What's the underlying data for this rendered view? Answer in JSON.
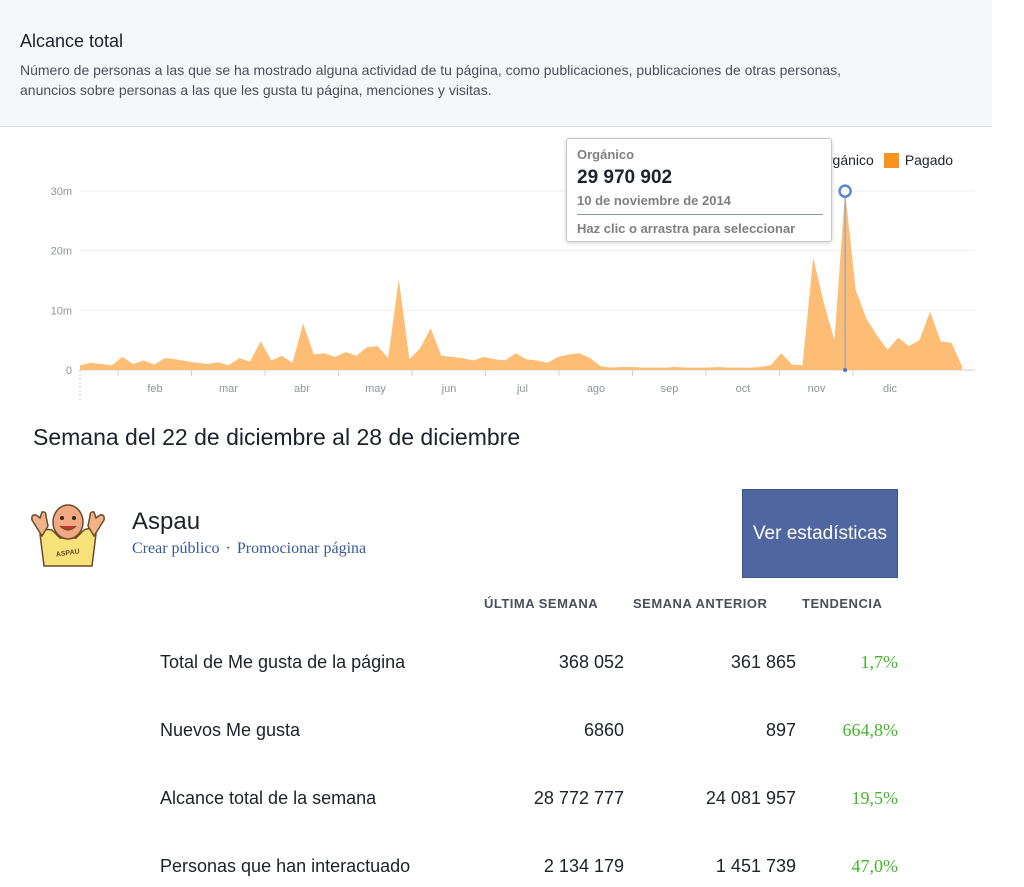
{
  "header": {
    "title": "Alcance total",
    "description": "Número de personas a las que se ha mostrado alguna actividad de tu página, como publicaciones, publicaciones de otras personas, anuncios sobre personas a las que les gusta tu página, menciones y visitas."
  },
  "legend": {
    "organic_label": "Orgánico",
    "paid_label": "Pagado",
    "organic_color": "#fdf3e6",
    "paid_color": "#f7941d"
  },
  "tooltip": {
    "series": "Orgánico",
    "value": "29 970 902",
    "date": "10 de noviembre de 2014",
    "hint": "Haz clic o arrastra para seleccionar"
  },
  "chart_data": {
    "type": "area",
    "y_ticks": [
      "30m",
      "20m",
      "10m",
      "0"
    ],
    "ylim": [
      0,
      30
    ],
    "x_ticks": [
      "feb",
      "mar",
      "abr",
      "may",
      "jun",
      "jul",
      "ago",
      "sep",
      "oct",
      "nov",
      "dic"
    ],
    "series": [
      {
        "name": "Orgánico",
        "color": "#fdbd74",
        "values": [
          0.8,
          1.2,
          1.0,
          0.8,
          2.2,
          1.0,
          1.6,
          0.9,
          2.0,
          1.8,
          1.5,
          1.2,
          1.0,
          1.3,
          0.8,
          2.0,
          1.4,
          4.8,
          1.6,
          2.4,
          1.2,
          7.8,
          2.6,
          2.8,
          2.2,
          3.0,
          2.4,
          3.8,
          4.0,
          2.0,
          15.2,
          1.8,
          3.6,
          7.0,
          2.4,
          2.2,
          2.0,
          1.6,
          2.2,
          1.8,
          1.6,
          2.8,
          1.8,
          1.6,
          1.2,
          2.2,
          2.6,
          2.8,
          2.0,
          0.6,
          0.4,
          0.5,
          0.5,
          0.4,
          0.4,
          0.4,
          0.5,
          0.4,
          0.4,
          0.4,
          0.5,
          0.4,
          0.4,
          0.4,
          0.5,
          0.8,
          2.8,
          0.9,
          0.8,
          18.8,
          11.2,
          5.0,
          29.97,
          13.4,
          8.6,
          5.8,
          3.4,
          5.4,
          4.0,
          5.0,
          9.8,
          4.8,
          4.6,
          0.6
        ]
      }
    ],
    "marker": {
      "series": "Orgánico",
      "value": 29.97
    }
  },
  "week": {
    "title": "Semana del 22 de diciembre al 28 de diciembre"
  },
  "page": {
    "name": "Aspau",
    "create_audience": "Crear público",
    "separator": "·",
    "promote": "Promocionar página",
    "stats_button": "Ver estadísticas",
    "avatar_text": "ASPAU"
  },
  "table": {
    "headers": [
      "ÚLTIMA SEMANA",
      "SEMANA ANTERIOR",
      "TENDENCIA"
    ],
    "rows": [
      {
        "label": "Total de Me gusta de la página",
        "last": "368 052",
        "previous": "361 865",
        "trend": "1,7%"
      },
      {
        "label": "Nuevos Me gusta",
        "last": "6860",
        "previous": "897",
        "trend": "664,8%"
      },
      {
        "label": "Alcance total de la semana",
        "last": "28 772 777",
        "previous": "24 081 957",
        "trend": "19,5%"
      },
      {
        "label": "Personas que han interactuado",
        "last": "2 134 179",
        "previous": "1 451 739",
        "trend": "47,0%"
      }
    ]
  }
}
